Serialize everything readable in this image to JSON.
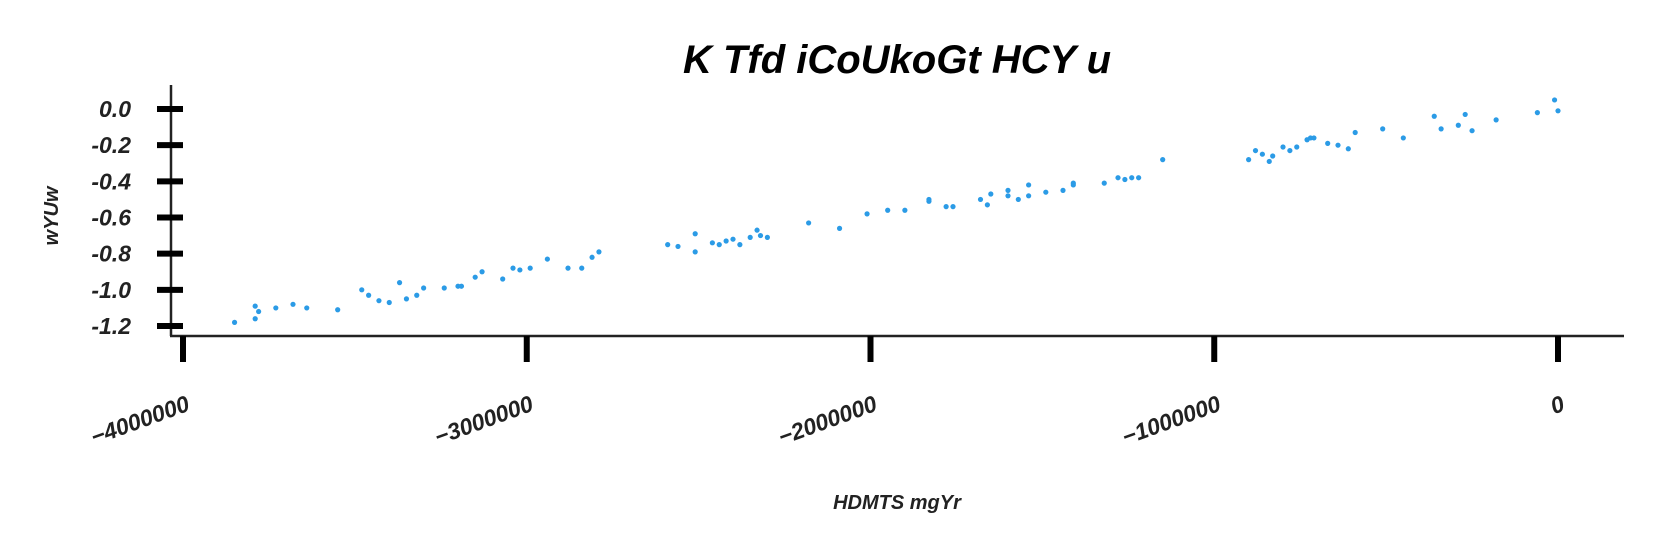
{
  "chart_data": {
    "type": "scatter",
    "title": "K Tfd iCoUkoGt HCY u",
    "xlabel": "HDMTS mgYr",
    "ylabel": "wYUw",
    "xlim": [
      -4040000,
      200000
    ],
    "ylim": [
      -1.22,
      0.12
    ],
    "x_ticks": [
      -4000000,
      -3000000,
      -2000000,
      -1000000,
      0
    ],
    "x_tick_labels": [
      "−4000000",
      "−3000000",
      "−2000000",
      "−1000000",
      "0"
    ],
    "y_ticks": [
      0.0,
      -0.2,
      -0.4,
      -0.6,
      -0.8,
      -1.0,
      -1.2
    ],
    "y_tick_labels": [
      "0.0",
      "-0.2",
      "-0.4",
      "-0.6",
      "-0.8",
      "-1.0",
      "-1.2"
    ],
    "grid": false,
    "color": "#2b9be6",
    "points": [
      [
        -3850000,
        -1.18
      ],
      [
        -3790000,
        -1.09
      ],
      [
        -3780000,
        -1.12
      ],
      [
        -3790000,
        -1.16
      ],
      [
        -3730000,
        -1.1
      ],
      [
        -3680000,
        -1.08
      ],
      [
        -3640000,
        -1.1
      ],
      [
        -3550000,
        -1.11
      ],
      [
        -3480000,
        -1.0
      ],
      [
        -3460000,
        -1.03
      ],
      [
        -3430000,
        -1.06
      ],
      [
        -3400000,
        -1.07
      ],
      [
        -3370000,
        -0.96
      ],
      [
        -3350000,
        -1.05
      ],
      [
        -3320000,
        -1.03
      ],
      [
        -3300000,
        -0.99
      ],
      [
        -3240000,
        -0.99
      ],
      [
        -3200000,
        -0.98
      ],
      [
        -3190000,
        -0.98
      ],
      [
        -3150000,
        -0.93
      ],
      [
        -3130000,
        -0.9
      ],
      [
        -3070000,
        -0.94
      ],
      [
        -3040000,
        -0.88
      ],
      [
        -3020000,
        -0.89
      ],
      [
        -2990000,
        -0.88
      ],
      [
        -2940000,
        -0.83
      ],
      [
        -2880000,
        -0.88
      ],
      [
        -2840000,
        -0.88
      ],
      [
        -2810000,
        -0.82
      ],
      [
        -2790000,
        -0.79
      ],
      [
        -2590000,
        -0.75
      ],
      [
        -2560000,
        -0.76
      ],
      [
        -2510000,
        -0.69
      ],
      [
        -2510000,
        -0.79
      ],
      [
        -2460000,
        -0.74
      ],
      [
        -2440000,
        -0.75
      ],
      [
        -2420000,
        -0.73
      ],
      [
        -2400000,
        -0.72
      ],
      [
        -2380000,
        -0.75
      ],
      [
        -2350000,
        -0.71
      ],
      [
        -2330000,
        -0.67
      ],
      [
        -2320000,
        -0.7
      ],
      [
        -2300000,
        -0.71
      ],
      [
        -2180000,
        -0.63
      ],
      [
        -2090000,
        -0.66
      ],
      [
        -2010000,
        -0.58
      ],
      [
        -1950000,
        -0.56
      ],
      [
        -1900000,
        -0.56
      ],
      [
        -1830000,
        -0.51
      ],
      [
        -1830000,
        -0.5
      ],
      [
        -1780000,
        -0.54
      ],
      [
        -1760000,
        -0.54
      ],
      [
        -1680000,
        -0.5
      ],
      [
        -1660000,
        -0.53
      ],
      [
        -1650000,
        -0.47
      ],
      [
        -1600000,
        -0.45
      ],
      [
        -1600000,
        -0.48
      ],
      [
        -1570000,
        -0.5
      ],
      [
        -1540000,
        -0.42
      ],
      [
        -1540000,
        -0.48
      ],
      [
        -1490000,
        -0.46
      ],
      [
        -1440000,
        -0.45
      ],
      [
        -1410000,
        -0.42
      ],
      [
        -1410000,
        -0.41
      ],
      [
        -1320000,
        -0.41
      ],
      [
        -1280000,
        -0.38
      ],
      [
        -1260000,
        -0.39
      ],
      [
        -1240000,
        -0.38
      ],
      [
        -1220000,
        -0.38
      ],
      [
        -1150000,
        -0.28
      ],
      [
        -900000,
        -0.28
      ],
      [
        -880000,
        -0.23
      ],
      [
        -860000,
        -0.25
      ],
      [
        -840000,
        -0.29
      ],
      [
        -830000,
        -0.26
      ],
      [
        -800000,
        -0.21
      ],
      [
        -780000,
        -0.23
      ],
      [
        -760000,
        -0.21
      ],
      [
        -730000,
        -0.17
      ],
      [
        -720000,
        -0.16
      ],
      [
        -710000,
        -0.16
      ],
      [
        -670000,
        -0.19
      ],
      [
        -640000,
        -0.2
      ],
      [
        -610000,
        -0.22
      ],
      [
        -590000,
        -0.13
      ],
      [
        -510000,
        -0.11
      ],
      [
        -450000,
        -0.16
      ],
      [
        -360000,
        -0.04
      ],
      [
        -340000,
        -0.11
      ],
      [
        -290000,
        -0.09
      ],
      [
        -270000,
        -0.03
      ],
      [
        -250000,
        -0.12
      ],
      [
        -180000,
        -0.06
      ],
      [
        -60000,
        -0.02
      ],
      [
        -10000,
        0.05
      ],
      [
        0,
        -0.01
      ]
    ]
  }
}
